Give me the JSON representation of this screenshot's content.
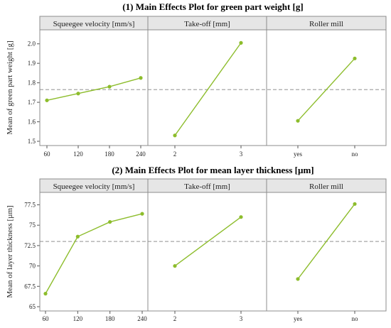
{
  "chart_data": [
    {
      "type": "line",
      "title": "(1) Main Effects Plot for green part weight [g]",
      "ylabel": "Mean of green part weight [g]",
      "ylim": [
        1.5,
        2.05
      ],
      "yticks": [
        "1.5",
        "1.6",
        "1.7",
        "1.8",
        "1.9",
        "2.0"
      ],
      "yticks_values": [
        1.5,
        1.6,
        1.7,
        1.8,
        1.9,
        2.0
      ],
      "reference_mean": 1.765,
      "line_color": "#8dbd2c",
      "ref_color": "#a6a6a6",
      "panels": [
        {
          "title": "Squeegee velocity [mm/s]",
          "categories": [
            "60",
            "120",
            "180",
            "240"
          ],
          "values": [
            1.71,
            1.745,
            1.78,
            1.825
          ]
        },
        {
          "title": "Take-off [mm]",
          "categories": [
            "2",
            "3"
          ],
          "values": [
            1.53,
            2.005
          ]
        },
        {
          "title": "Roller mill",
          "categories": [
            "yes",
            "no"
          ],
          "values": [
            1.605,
            1.925
          ]
        }
      ]
    },
    {
      "type": "line",
      "title": "(2) Main Effects Plot for mean layer thickness [µm]",
      "ylabel": "Mean of layer thickness [µm]",
      "ylim": [
        65,
        78.5
      ],
      "yticks": [
        "65",
        "67.5",
        "70",
        "72.5",
        "75",
        "77.5"
      ],
      "yticks_values": [
        65,
        67.5,
        70,
        72.5,
        75,
        77.5
      ],
      "reference_mean": 73.0,
      "line_color": "#8dbd2c",
      "ref_color": "#a6a6a6",
      "panels": [
        {
          "title": "Squeegee velocity [mm/s]",
          "categories": [
            "60",
            "120",
            "180",
            "240"
          ],
          "values": [
            66.6,
            73.6,
            75.4,
            76.4
          ]
        },
        {
          "title": "Take-off [mm]",
          "categories": [
            "2",
            "3"
          ],
          "values": [
            70.0,
            76.0
          ]
        },
        {
          "title": "Roller mill",
          "categories": [
            "yes",
            "no"
          ],
          "values": [
            68.4,
            77.6
          ]
        }
      ]
    }
  ]
}
